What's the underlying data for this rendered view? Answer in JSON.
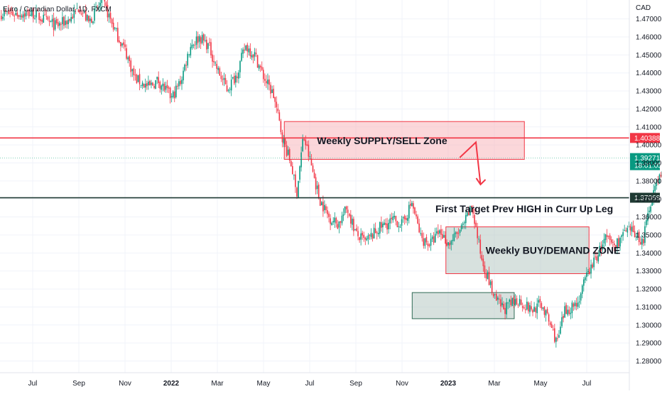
{
  "symbol_title": "Euro / Canadian Dollar, 1D, FXCM",
  "currency_label": "CAD",
  "chart_data": {
    "type": "candlestick",
    "x_labels": [
      "Jul",
      "Sep",
      "Nov",
      "2022",
      "Mar",
      "May",
      "Jul",
      "Sep",
      "Nov",
      "2023",
      "Mar",
      "May",
      "Jul"
    ],
    "y_ticks": [
      1.47,
      1.46,
      1.45,
      1.44,
      1.43,
      1.42,
      1.41,
      1.4,
      1.39,
      1.38,
      1.37,
      1.36,
      1.35,
      1.34,
      1.33,
      1.32,
      1.31,
      1.3,
      1.29,
      1.28
    ],
    "y_tick_labels": [
      "1.47000",
      "1.46000",
      "1.45000",
      "1.44000",
      "1.43000",
      "1.42000",
      "1.41000",
      "1.40000",
      "1.39000",
      "1.38000",
      "1.37000",
      "1.36000",
      "1.35000",
      "1.34000",
      "1.33000",
      "1.32000",
      "1.31000",
      "1.30000",
      "1.29000",
      "1.28000"
    ],
    "ylim": [
      1.2735,
      1.4805
    ],
    "price_path": [
      [
        0,
        1.473
      ],
      [
        0.2,
        1.47
      ],
      [
        0.5,
        1.466
      ],
      [
        0.8,
        1.47
      ],
      [
        1.0,
        1.477
      ],
      [
        1.2,
        1.468
      ],
      [
        1.5,
        1.48
      ],
      [
        1.8,
        1.462
      ],
      [
        2.0,
        1.452
      ],
      [
        2.2,
        1.437
      ],
      [
        2.5,
        1.432
      ],
      [
        2.7,
        1.436
      ],
      [
        3.0,
        1.426
      ],
      [
        3.2,
        1.436
      ],
      [
        3.4,
        1.455
      ],
      [
        3.6,
        1.46
      ],
      [
        3.8,
        1.455
      ],
      [
        4.0,
        1.441
      ],
      [
        4.2,
        1.431
      ],
      [
        4.4,
        1.439
      ],
      [
        4.6,
        1.455
      ],
      [
        4.8,
        1.45
      ],
      [
        5.0,
        1.437
      ],
      [
        5.2,
        1.428
      ],
      [
        5.4,
        1.404
      ],
      [
        5.6,
        1.388
      ],
      [
        5.7,
        1.372
      ],
      [
        5.85,
        1.405
      ],
      [
        6.0,
        1.391
      ],
      [
        6.2,
        1.37
      ],
      [
        6.4,
        1.36
      ],
      [
        6.6,
        1.356
      ],
      [
        6.8,
        1.365
      ],
      [
        7.0,
        1.35
      ],
      [
        7.2,
        1.346
      ],
      [
        7.5,
        1.354
      ],
      [
        7.8,
        1.358
      ],
      [
        8.0,
        1.356
      ],
      [
        8.2,
        1.368
      ],
      [
        8.4,
        1.348
      ],
      [
        8.6,
        1.345
      ],
      [
        8.8,
        1.352
      ],
      [
        9.0,
        1.345
      ],
      [
        9.3,
        1.354
      ],
      [
        9.5,
        1.366
      ],
      [
        9.7,
        1.338
      ],
      [
        10.0,
        1.314
      ],
      [
        10.2,
        1.309
      ],
      [
        10.5,
        1.314
      ],
      [
        10.8,
        1.308
      ],
      [
        11.0,
        1.312
      ],
      [
        11.2,
        1.3
      ],
      [
        11.35,
        1.29
      ],
      [
        11.5,
        1.307
      ],
      [
        11.8,
        1.313
      ],
      [
        12.0,
        1.328
      ],
      [
        12.2,
        1.338
      ],
      [
        12.4,
        1.348
      ],
      [
        12.6,
        1.344
      ],
      [
        12.8,
        1.351
      ],
      [
        13.0,
        1.352
      ],
      [
        13.2,
        1.346
      ],
      [
        13.4,
        1.372
      ],
      [
        13.6,
        1.384
      ],
      [
        13.8,
        1.383
      ],
      [
        13.95,
        1.392
      ]
    ],
    "horizontal_lines": [
      {
        "price": 1.40388,
        "label": "1.40388",
        "color": "#f23645"
      },
      {
        "price": 1.37068,
        "label": "1.37068",
        "color": "#1f3a33"
      },
      {
        "price": 1.39271,
        "label": "1.39271",
        "color": "#7fcfb8"
      }
    ],
    "last_price": {
      "label": "1.39271",
      "countdown": "18:01:05",
      "color": "#089981"
    },
    "zones": [
      {
        "name": "supply",
        "x_start": 5.45,
        "x_end": 10.65,
        "y_top": 1.413,
        "y_bottom": 1.392,
        "fill": "#f7b6bc",
        "stroke": "#f23645",
        "label": "Weekly SUPPLY/SELL Zone"
      },
      {
        "name": "demand",
        "x_start": 8.95,
        "x_end": 12.05,
        "y_top": 1.3545,
        "y_bottom": 1.3285,
        "fill": "#b7c9c2",
        "stroke": "#f23645",
        "label": "Weekly BUY/DEMAND ZONE"
      },
      {
        "name": "demand2",
        "x_start": 8.22,
        "x_end": 10.43,
        "y_top": 1.318,
        "y_bottom": 1.3035,
        "fill": "#b7c9c2",
        "stroke": "#2f6a55",
        "label": ""
      }
    ],
    "projection": [
      [
        9.25,
        1.393
      ],
      [
        9.6,
        1.4015
      ],
      [
        9.7,
        1.378
      ]
    ],
    "annotations": [
      {
        "text": "First Target Prev HIGH in Curr Up Leg"
      }
    ]
  },
  "colors": {
    "up": "#089981",
    "down": "#f23645",
    "grid": "#f0f3fa"
  }
}
